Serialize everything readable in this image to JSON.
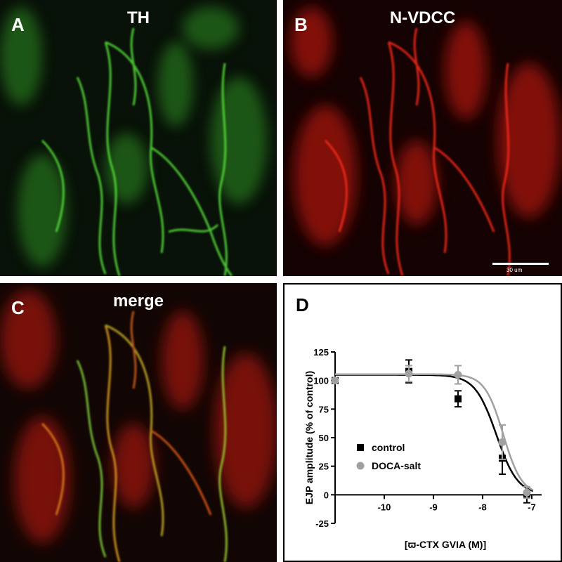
{
  "panels": {
    "a": {
      "letter": "A",
      "title": "TH",
      "tint": "#3fcf2c"
    },
    "b": {
      "letter": "B",
      "title": "N-VDCC",
      "tint": "#e0160e",
      "scale_label": "30 um"
    },
    "c": {
      "letter": "C",
      "title": "merge",
      "tint_red": "#d8200e",
      "tint_green": "#46c12a"
    },
    "d": {
      "letter": "D"
    }
  },
  "chart_data": {
    "type": "scatter",
    "title": "",
    "xlabel": "[ϖ-CTX GVIA (M)]",
    "ylabel": "EJP amplitude (% of control)",
    "xlim": [
      -11,
      -6.8
    ],
    "ylim": [
      -25,
      125
    ],
    "xticks": [
      -10,
      -9,
      -8,
      -7
    ],
    "xtick_labels": [
      "-10",
      "-9",
      "-8",
      "-7"
    ],
    "yticks": [
      -25,
      0,
      25,
      50,
      75,
      100,
      125
    ],
    "ytick_labels": [
      "-25",
      "0",
      "25",
      "50",
      "75",
      "100",
      "125"
    ],
    "legend_position": "lower-left",
    "series": [
      {
        "name": "control",
        "marker": "square",
        "color": "#000000",
        "x": [
          -11,
          -9.5,
          -8.5,
          -7.6,
          -7.1
        ],
        "y": [
          100,
          108,
          84,
          32,
          0
        ],
        "err": [
          0,
          10,
          7,
          14,
          7
        ],
        "fit": {
          "top": 105,
          "bottom": 0,
          "logIC50": -7.72,
          "hill": 2.0
        }
      },
      {
        "name": "DOCA-salt",
        "marker": "circle",
        "color": "#a0a0a0",
        "x": [
          -11,
          -9.5,
          -8.5,
          -7.6,
          -7.1
        ],
        "y": [
          100,
          106,
          105,
          46,
          2
        ],
        "err": [
          0,
          7,
          8,
          15,
          5
        ],
        "fit": {
          "top": 105.5,
          "bottom": 0,
          "logIC50": -7.58,
          "hill": 2.3
        }
      }
    ]
  }
}
